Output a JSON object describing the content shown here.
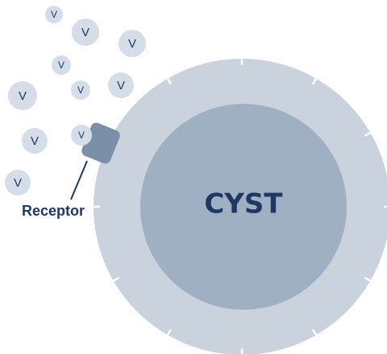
{
  "viruses": [
    {
      "label": "V"
    },
    {
      "label": "V"
    },
    {
      "label": "V"
    },
    {
      "label": "V"
    },
    {
      "label": "V"
    },
    {
      "label": "V"
    },
    {
      "label": "V"
    },
    {
      "label": "V"
    },
    {
      "label": "V"
    },
    {
      "label": "V"
    }
  ],
  "receptor": {
    "label": "Receptor"
  },
  "cyst": {
    "label": "CYST"
  }
}
